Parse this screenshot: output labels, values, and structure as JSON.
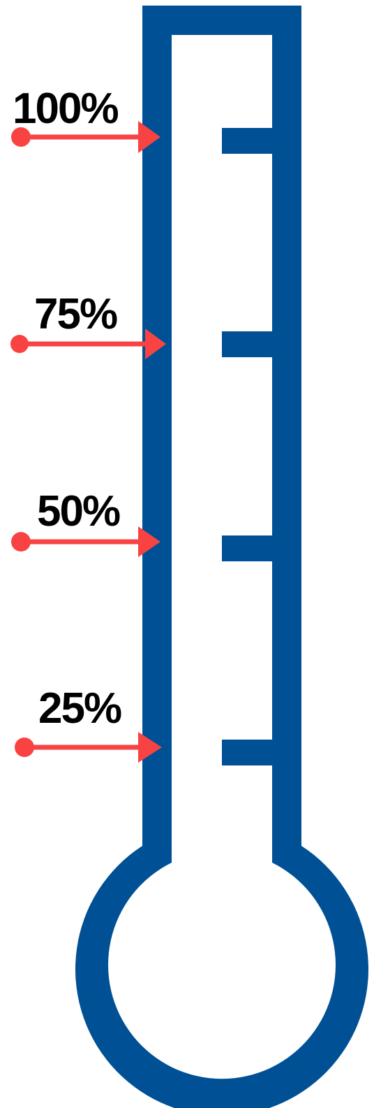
{
  "colors": {
    "thermometer": "#005095",
    "arrow": "#f84342",
    "label": "#000000",
    "background": "#ffffff"
  },
  "markers": [
    {
      "label": "100%",
      "percent": 100
    },
    {
      "label": "75%",
      "percent": 75
    },
    {
      "label": "50%",
      "percent": 50
    },
    {
      "label": "25%",
      "percent": 25
    }
  ]
}
